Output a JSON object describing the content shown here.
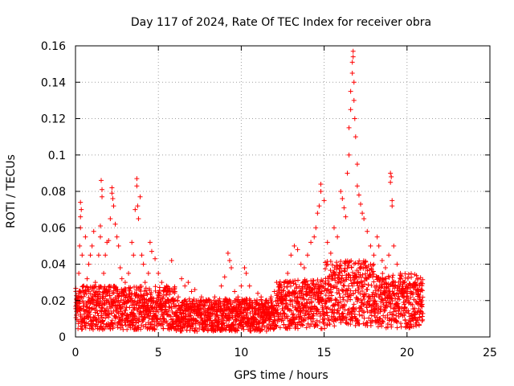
{
  "chart_data": {
    "type": "scatter",
    "title": "Day 117 of 2024, Rate Of TEC Index for receiver obra",
    "xlabel": "GPS time / hours",
    "ylabel": "ROTI / TECUs",
    "xlim": [
      0,
      25
    ],
    "ylim": [
      0,
      0.16
    ],
    "xticks": [
      0,
      5,
      10,
      15,
      20,
      25
    ],
    "xtick_labels": [
      "0",
      "5",
      "10",
      "15",
      "20",
      "25"
    ],
    "yticks": [
      0,
      0.02,
      0.04,
      0.06,
      0.08,
      0.1,
      0.12,
      0.14,
      0.16
    ],
    "ytick_labels": [
      "0",
      "0.02",
      "0.04",
      "0.06",
      "0.08",
      "0.1",
      "0.12",
      "0.14",
      "0.16"
    ],
    "grid": true,
    "marker": "plus",
    "color": "#ff0000",
    "series": [
      {
        "name": "ROTI",
        "points": [
          [
            0.05,
            0.012
          ],
          [
            0.1,
            0.02
          ],
          [
            0.2,
            0.035
          ],
          [
            0.25,
            0.05
          ],
          [
            0.3,
            0.06
          ],
          [
            0.3,
            0.066
          ],
          [
            0.3,
            0.074
          ],
          [
            0.35,
            0.07
          ],
          [
            0.4,
            0.045
          ],
          [
            0.5,
            0.028
          ],
          [
            0.6,
            0.055
          ],
          [
            0.7,
            0.032
          ],
          [
            0.8,
            0.04
          ],
          [
            0.9,
            0.045
          ],
          [
            1.0,
            0.05
          ],
          [
            1.1,
            0.058
          ],
          [
            1.2,
            0.03
          ],
          [
            1.3,
            0.025
          ],
          [
            1.4,
            0.045
          ],
          [
            1.5,
            0.055
          ],
          [
            1.5,
            0.061
          ],
          [
            1.55,
            0.086
          ],
          [
            1.6,
            0.077
          ],
          [
            1.6,
            0.081
          ],
          [
            1.7,
            0.035
          ],
          [
            1.8,
            0.045
          ],
          [
            1.9,
            0.052
          ],
          [
            2.0,
            0.053
          ],
          [
            2.1,
            0.065
          ],
          [
            2.2,
            0.079
          ],
          [
            2.2,
            0.082
          ],
          [
            2.25,
            0.076
          ],
          [
            2.3,
            0.072
          ],
          [
            2.4,
            0.062
          ],
          [
            2.5,
            0.055
          ],
          [
            2.6,
            0.05
          ],
          [
            2.7,
            0.038
          ],
          [
            2.8,
            0.032
          ],
          [
            2.9,
            0.025
          ],
          [
            3.0,
            0.03
          ],
          [
            3.2,
            0.035
          ],
          [
            3.4,
            0.052
          ],
          [
            3.5,
            0.045
          ],
          [
            3.6,
            0.07
          ],
          [
            3.7,
            0.087
          ],
          [
            3.7,
            0.083
          ],
          [
            3.75,
            0.072
          ],
          [
            3.8,
            0.065
          ],
          [
            3.9,
            0.077
          ],
          [
            4.0,
            0.045
          ],
          [
            4.1,
            0.04
          ],
          [
            4.2,
            0.03
          ],
          [
            4.4,
            0.035
          ],
          [
            4.5,
            0.052
          ],
          [
            4.6,
            0.047
          ],
          [
            4.8,
            0.043
          ],
          [
            5.0,
            0.035
          ],
          [
            5.2,
            0.03
          ],
          [
            5.5,
            0.028
          ],
          [
            5.7,
            0.025
          ],
          [
            5.8,
            0.042
          ],
          [
            6.0,
            0.025
          ],
          [
            6.2,
            0.022
          ],
          [
            6.4,
            0.032
          ],
          [
            6.6,
            0.028
          ],
          [
            6.8,
            0.03
          ],
          [
            7.0,
            0.025
          ],
          [
            7.2,
            0.026
          ],
          [
            7.4,
            0.02
          ],
          [
            7.6,
            0.022
          ],
          [
            7.8,
            0.017
          ],
          [
            8.0,
            0.02
          ],
          [
            8.2,
            0.018
          ],
          [
            8.4,
            0.022
          ],
          [
            8.6,
            0.02
          ],
          [
            8.8,
            0.028
          ],
          [
            9.0,
            0.033
          ],
          [
            9.2,
            0.046
          ],
          [
            9.3,
            0.042
          ],
          [
            9.4,
            0.038
          ],
          [
            9.6,
            0.025
          ],
          [
            9.8,
            0.022
          ],
          [
            10.0,
            0.028
          ],
          [
            10.2,
            0.038
          ],
          [
            10.3,
            0.035
          ],
          [
            10.5,
            0.028
          ],
          [
            10.8,
            0.02
          ],
          [
            11.0,
            0.024
          ],
          [
            11.2,
            0.022
          ],
          [
            11.5,
            0.02
          ],
          [
            11.8,
            0.022
          ],
          [
            12.0,
            0.025
          ],
          [
            12.3,
            0.028
          ],
          [
            12.6,
            0.03
          ],
          [
            12.8,
            0.035
          ],
          [
            13.0,
            0.045
          ],
          [
            13.2,
            0.05
          ],
          [
            13.4,
            0.048
          ],
          [
            13.6,
            0.04
          ],
          [
            13.8,
            0.038
          ],
          [
            14.0,
            0.045
          ],
          [
            14.2,
            0.052
          ],
          [
            14.4,
            0.055
          ],
          [
            14.5,
            0.06
          ],
          [
            14.6,
            0.068
          ],
          [
            14.7,
            0.072
          ],
          [
            14.8,
            0.08
          ],
          [
            14.8,
            0.084
          ],
          [
            15.0,
            0.075
          ],
          [
            15.2,
            0.052
          ],
          [
            15.4,
            0.046
          ],
          [
            15.6,
            0.06
          ],
          [
            15.8,
            0.055
          ],
          [
            16.0,
            0.08
          ],
          [
            16.1,
            0.076
          ],
          [
            16.2,
            0.071
          ],
          [
            16.3,
            0.066
          ],
          [
            16.4,
            0.09
          ],
          [
            16.5,
            0.1
          ],
          [
            16.5,
            0.115
          ],
          [
            16.6,
            0.125
          ],
          [
            16.6,
            0.135
          ],
          [
            16.7,
            0.145
          ],
          [
            16.7,
            0.151
          ],
          [
            16.75,
            0.154
          ],
          [
            16.75,
            0.157
          ],
          [
            16.8,
            0.14
          ],
          [
            16.8,
            0.13
          ],
          [
            16.85,
            0.12
          ],
          [
            16.9,
            0.11
          ],
          [
            17.0,
            0.095
          ],
          [
            17.0,
            0.083
          ],
          [
            17.1,
            0.078
          ],
          [
            17.2,
            0.073
          ],
          [
            17.3,
            0.068
          ],
          [
            17.4,
            0.065
          ],
          [
            17.6,
            0.058
          ],
          [
            17.8,
            0.05
          ],
          [
            18.0,
            0.045
          ],
          [
            18.2,
            0.055
          ],
          [
            18.3,
            0.05
          ],
          [
            18.5,
            0.042
          ],
          [
            18.7,
            0.038
          ],
          [
            18.9,
            0.045
          ],
          [
            19.0,
            0.085
          ],
          [
            19.0,
            0.09
          ],
          [
            19.05,
            0.088
          ],
          [
            19.1,
            0.072
          ],
          [
            19.1,
            0.075
          ],
          [
            19.2,
            0.05
          ],
          [
            19.4,
            0.04
          ],
          [
            19.6,
            0.035
          ],
          [
            19.8,
            0.03
          ],
          [
            20.0,
            0.028
          ],
          [
            20.2,
            0.025
          ],
          [
            20.4,
            0.027
          ],
          [
            20.5,
            0.03
          ],
          [
            20.6,
            0.026
          ],
          [
            20.8,
            0.025
          ],
          [
            20.9,
            0.02
          ]
        ]
      }
    ]
  }
}
